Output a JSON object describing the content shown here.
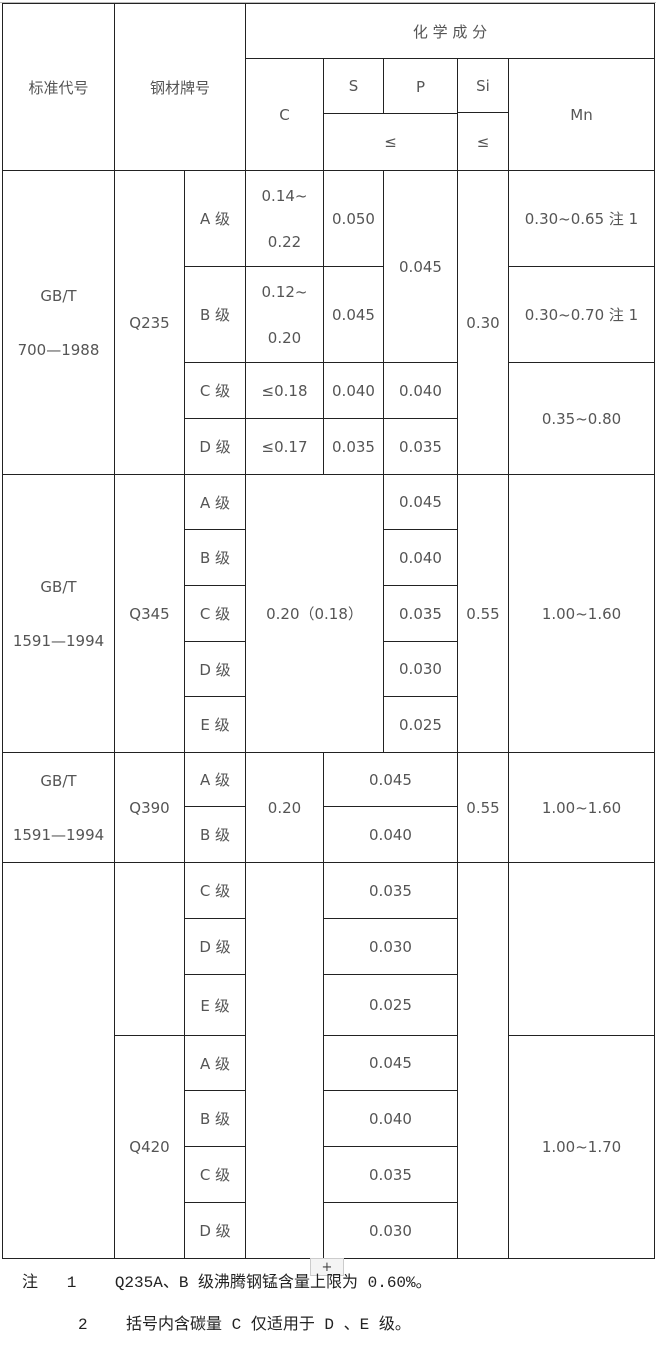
{
  "header": {
    "standard_code": "标准代号",
    "steel_grade": "钢材牌号",
    "chemical_composition": "化 学 成 分",
    "c": "C",
    "s": "S",
    "p": "P",
    "sp_max": "≤",
    "si": "Si",
    "si_max": "≤",
    "mn": "Mn"
  },
  "q235": {
    "standard": "GB/T\n700—1988",
    "grade": "Q235",
    "levels": [
      "A 级",
      "B 级",
      "C 级",
      "D 级"
    ],
    "c": [
      "0.14~0.22",
      "0.12~0.20",
      "≤0.18",
      "≤0.17"
    ],
    "s": [
      "0.050",
      "0.045",
      "0.040",
      "0.035"
    ],
    "p_ab": "0.045",
    "p": [
      "0.040",
      "0.035"
    ],
    "si": "0.30",
    "mn_a": "0.30~0.65  注 1",
    "mn_b": "0.30~0.70  注 1",
    "mn_cd": "0.35~0.80"
  },
  "q345": {
    "standard": "GB/T\n1591—1994",
    "grade": "Q345",
    "levels": [
      "A 级",
      "B 级",
      "C 级",
      "D 级",
      "E 级"
    ],
    "cs": "0.20（0.18）",
    "p": [
      "0.045",
      "0.040",
      "0.035",
      "0.030",
      "0.025"
    ],
    "si": "0.55",
    "mn": "1.00~1.60"
  },
  "q390": {
    "standard": "GB/T\n1591—1994",
    "grade": "Q390",
    "levels": [
      "A 级",
      "B 级"
    ],
    "c": "0.20",
    "sp": [
      "0.045",
      "0.040"
    ],
    "si": "0.55",
    "mn": "1.00~1.60"
  },
  "q390_cont": {
    "levels": [
      "C 级",
      "D 级",
      "E 级"
    ],
    "sp": [
      "0.035",
      "0.030",
      "0.025"
    ]
  },
  "q420": {
    "grade": "Q420",
    "levels": [
      "A 级",
      "B 级",
      "C 级",
      "D 级"
    ],
    "sp": [
      "0.045",
      "0.040",
      "0.035",
      "0.030"
    ],
    "mn": "1.00~1.70"
  },
  "notes": {
    "note1": "注   1    Q235A、B 级沸腾钢锰含量上限为 0.60%。",
    "note2": "2    括号内含碳量 C 仅适用于 D 、E 级。"
  },
  "add_row_button": "+"
}
